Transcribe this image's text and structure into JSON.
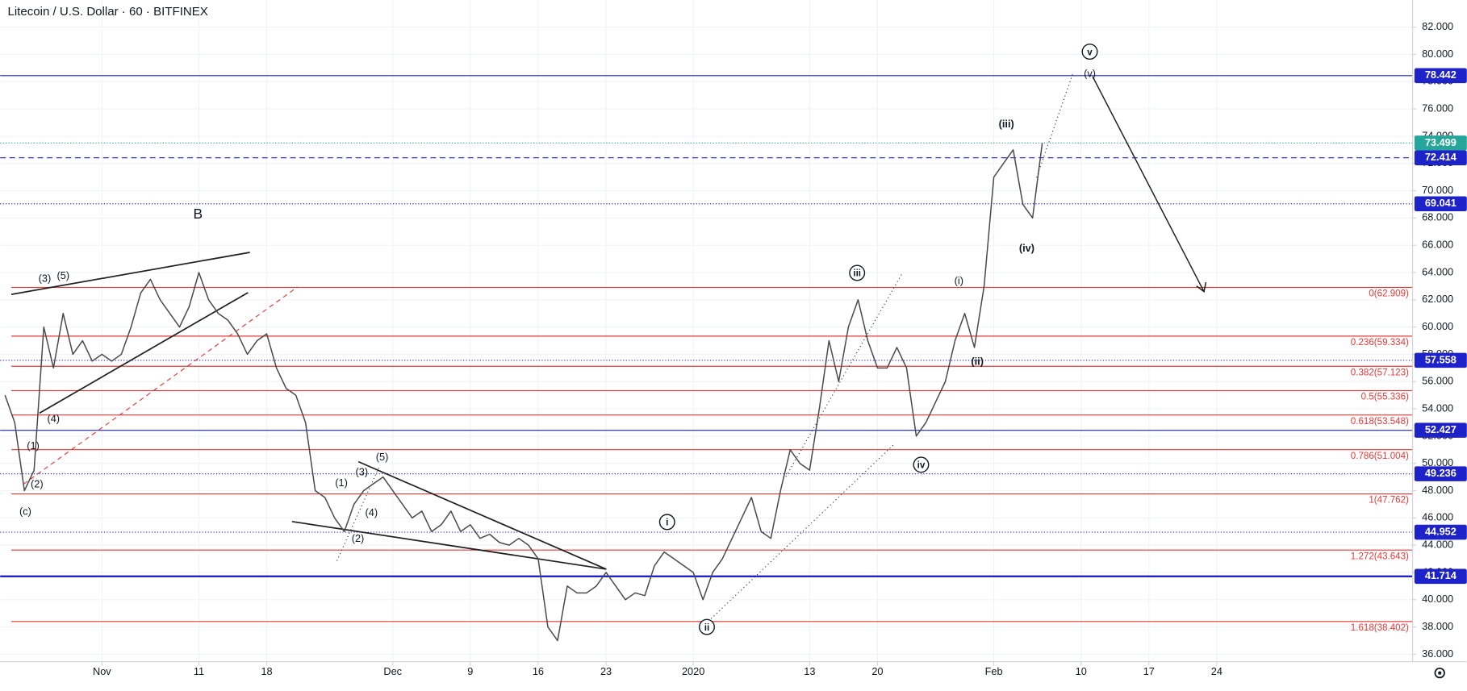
{
  "chart_data": {
    "type": "line",
    "title": "Litecoin / U.S. Dollar · 60 · BITFINEX",
    "color": "#4a4a4a",
    "grid": true,
    "x": [
      -10,
      -9,
      -8,
      -7,
      -6,
      -5,
      -4,
      -3,
      -2,
      -1,
      0,
      1,
      2,
      3,
      4,
      5,
      6,
      7,
      8,
      9,
      10,
      11,
      12,
      13,
      14,
      15,
      16,
      17,
      18,
      19,
      20,
      21,
      22,
      23,
      24,
      25,
      26,
      27,
      28,
      29,
      30,
      31,
      32,
      33,
      34,
      35,
      36,
      37,
      38,
      39,
      40,
      41,
      42,
      43,
      44,
      45,
      46,
      47,
      48,
      49,
      50,
      51,
      52,
      53,
      54,
      55,
      56,
      57,
      58,
      59,
      60,
      61,
      62,
      63,
      64,
      65,
      66,
      67,
      68,
      69,
      70,
      71,
      72,
      73,
      74,
      75,
      76,
      77,
      78,
      79,
      80,
      81,
      82,
      83,
      84,
      85,
      86,
      87,
      88,
      89,
      90,
      91,
      92,
      93,
      94,
      95,
      96,
      97
    ],
    "values": [
      55,
      53,
      48,
      49.5,
      60,
      57,
      61,
      58,
      59,
      57.5,
      58,
      57.5,
      58,
      60,
      62.5,
      63.5,
      62,
      61,
      60,
      61.5,
      64,
      62,
      61,
      60.5,
      59.5,
      58,
      59,
      59.5,
      57,
      55.5,
      55,
      53,
      48,
      47.5,
      46,
      45,
      47,
      48,
      48.5,
      49,
      48,
      47,
      46,
      46.5,
      45,
      45.5,
      46.5,
      45,
      45.5,
      44.5,
      44.8,
      44.2,
      44,
      44.5,
      44,
      43,
      38,
      37,
      41,
      40.5,
      40.5,
      41,
      42,
      41,
      40,
      40.5,
      40.3,
      42.5,
      43.5,
      43,
      42.5,
      42,
      40,
      42,
      43,
      44.5,
      46,
      47.5,
      45,
      44.5,
      48,
      51,
      50,
      49.5,
      54,
      59,
      56,
      60,
      62,
      59,
      57,
      57,
      58.5,
      57,
      52,
      53,
      54.5,
      56,
      59,
      61,
      58.5,
      63,
      71,
      72,
      73,
      69,
      68,
      73.5
    ],
    "xlim": [
      -10.5,
      135.2
    ],
    "xticks": [
      {
        "value": 0,
        "label": "Nov"
      },
      {
        "value": 10,
        "label": "11"
      },
      {
        "value": 17,
        "label": "18"
      },
      {
        "value": 30,
        "label": "Dec"
      },
      {
        "value": 38,
        "label": "9"
      },
      {
        "value": 45,
        "label": "16"
      },
      {
        "value": 52,
        "label": "23"
      },
      {
        "value": 61,
        "label": "2020"
      },
      {
        "value": 73,
        "label": "13"
      },
      {
        "value": 80,
        "label": "20"
      },
      {
        "value": 92,
        "label": "Feb"
      },
      {
        "value": 101,
        "label": "10"
      },
      {
        "value": 108,
        "label": "17"
      },
      {
        "value": 115,
        "label": "24"
      }
    ],
    "ylim": [
      35.45,
      83.99
    ],
    "yticks": [
      {
        "value": 36,
        "label": "36.000"
      },
      {
        "value": 38,
        "label": "38.000"
      },
      {
        "value": 40,
        "label": "40.000"
      },
      {
        "value": 42,
        "label": "42.000"
      },
      {
        "value": 44,
        "label": "44.000"
      },
      {
        "value": 46,
        "label": "46.000"
      },
      {
        "value": 48,
        "label": "48.000"
      },
      {
        "value": 50,
        "label": "50.000"
      },
      {
        "value": 52,
        "label": "52.000"
      },
      {
        "value": 54,
        "label": "54.000"
      },
      {
        "value": 56,
        "label": "56.000"
      },
      {
        "value": 58,
        "label": "58.000"
      },
      {
        "value": 60,
        "label": "60.000"
      },
      {
        "value": 62,
        "label": "62.000"
      },
      {
        "value": 64,
        "label": "64.000"
      },
      {
        "value": 66,
        "label": "66.000"
      },
      {
        "value": 68,
        "label": "68.000"
      },
      {
        "value": 70,
        "label": "70.000"
      },
      {
        "value": 72,
        "label": "72.000"
      },
      {
        "value": 74,
        "label": "74.000"
      },
      {
        "value": 76,
        "label": "76.000"
      },
      {
        "value": 78,
        "label": "78.000"
      },
      {
        "value": 80,
        "label": "80.000"
      },
      {
        "value": 82,
        "label": "82.000"
      }
    ],
    "levels": [
      {
        "value": 78.442,
        "kind": "price",
        "color": "#1e22c9",
        "style": "solid"
      },
      {
        "value": 73.499,
        "kind": "price",
        "color": "#26a69a",
        "style": "dotted"
      },
      {
        "value": 72.414,
        "kind": "price",
        "color": "#1e22c9",
        "style": "dashed"
      },
      {
        "value": 69.041,
        "kind": "price",
        "color": "#1e22c9",
        "style": "dotted"
      },
      {
        "value": 57.558,
        "kind": "price",
        "color": "#1e22c9",
        "style": "dotted"
      },
      {
        "value": 52.427,
        "kind": "price",
        "color": "#1e22c9",
        "style": "solid"
      },
      {
        "value": 49.236,
        "kind": "price",
        "color": "#1e22c9",
        "style": "dotted"
      },
      {
        "value": 44.952,
        "kind": "price",
        "color": "#1e22c9",
        "style": "dotted"
      },
      {
        "value": 41.714,
        "kind": "price",
        "color": "#1e22c9",
        "style": "thick"
      },
      {
        "value": 62.909,
        "label": "0(62.909)",
        "kind": "fib",
        "color": "#e53935",
        "style": "solid"
      },
      {
        "value": 59.334,
        "label": "0.236(59.334)",
        "kind": "fib",
        "color": "#e53935",
        "style": "solid"
      },
      {
        "value": 57.123,
        "label": "0.382(57.123)",
        "kind": "fib",
        "color": "#e53935",
        "style": "solid"
      },
      {
        "value": 55.336,
        "label": "0.5(55.336)",
        "kind": "fib",
        "color": "#e53935",
        "style": "solid"
      },
      {
        "value": 53.548,
        "label": "0.618(53.548)",
        "kind": "fib",
        "color": "#e53935",
        "style": "solid"
      },
      {
        "value": 51.004,
        "label": "0.786(51.004)",
        "kind": "fib",
        "color": "#e53935",
        "style": "solid"
      },
      {
        "value": 47.762,
        "label": "1(47.762)",
        "kind": "fib",
        "color": "#e53935",
        "style": "solid"
      },
      {
        "value": 43.643,
        "label": "1.272(43.643)",
        "kind": "fib",
        "color": "#e53935",
        "style": "solid"
      },
      {
        "value": 38.402,
        "label": "1.618(38.402)",
        "kind": "fib",
        "color": "#e53935",
        "style": "solid"
      }
    ],
    "annotations": [
      {
        "text": "B",
        "x": 9.9,
        "y": 68.3,
        "circled": false
      },
      {
        "text": "(3)",
        "x": -5.9,
        "y": 63.6,
        "circled": false
      },
      {
        "text": "(5)",
        "x": -4.0,
        "y": 63.8,
        "circled": false
      },
      {
        "text": "(4)",
        "x": -5.0,
        "y": 53.3,
        "circled": false
      },
      {
        "text": "(1)",
        "x": -7.1,
        "y": 51.3,
        "circled": false
      },
      {
        "text": "(2)",
        "x": -6.7,
        "y": 48.5,
        "circled": false
      },
      {
        "text": "(c)",
        "x": -7.9,
        "y": 46.5,
        "circled": false
      },
      {
        "text": "(1)",
        "x": 24.7,
        "y": 48.6,
        "circled": false
      },
      {
        "text": "(3)",
        "x": 26.8,
        "y": 49.4,
        "circled": false
      },
      {
        "text": "(5)",
        "x": 28.9,
        "y": 50.5,
        "circled": false
      },
      {
        "text": "(4)",
        "x": 27.8,
        "y": 46.4,
        "circled": false
      },
      {
        "text": "(2)",
        "x": 26.4,
        "y": 44.5,
        "circled": false
      },
      {
        "text": "i",
        "x": 58.3,
        "y": 45.7,
        "circled": true
      },
      {
        "text": "ii",
        "x": 62.4,
        "y": 38.0,
        "circled": true
      },
      {
        "text": "iii",
        "x": 77.9,
        "y": 63.97,
        "circled": true
      },
      {
        "text": "iv",
        "x": 84.5,
        "y": 49.9,
        "circled": true
      },
      {
        "text": "(i)",
        "x": 88.4,
        "y": 63.4,
        "circled": false
      },
      {
        "text": "(ii)",
        "x": 90.3,
        "y": 57.5,
        "circled": false
      },
      {
        "text": "(iii)",
        "x": 93.3,
        "y": 74.9,
        "circled": false
      },
      {
        "text": "(iv)",
        "x": 95.4,
        "y": 65.8,
        "circled": false
      },
      {
        "text": "(v)",
        "x": 101.9,
        "y": 78.6,
        "circled": false
      },
      {
        "text": "v",
        "x": 101.9,
        "y": 80.2,
        "circled": true
      }
    ]
  }
}
